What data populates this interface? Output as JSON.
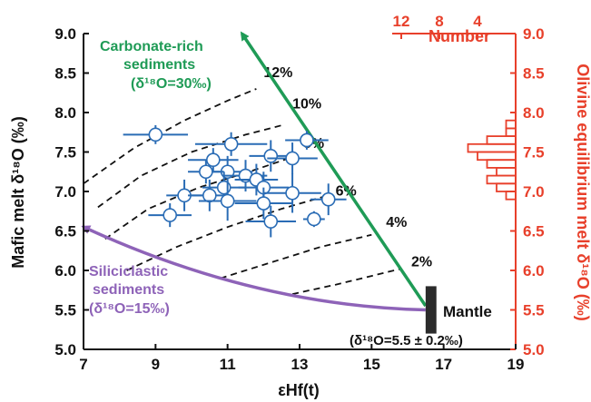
{
  "colors": {
    "axis": "#111111",
    "data_blue": "#2a6cb5",
    "right_axis": "#e8402b",
    "green_arrow": "#1f9b56",
    "purple_arrow": "#8e63b8",
    "mantle_box": "#2b2b2b"
  },
  "chart_data": {
    "type": "scatter",
    "xlabel": "εHf(t)",
    "ylabel_left": "Mafic melt δ¹⁸O (‰)",
    "ylabel_right": "Olivine equilibrium melt δ¹⁸O (‰)",
    "top_axis_label": "Number",
    "xlim": [
      7,
      19
    ],
    "ylim": [
      5.0,
      9.0
    ],
    "x_ticks": [
      "7",
      "9",
      "11",
      "13",
      "15",
      "17",
      "19"
    ],
    "y_ticks": [
      "5.0",
      "5.5",
      "6.0",
      "6.5",
      "7.0",
      "7.5",
      "8.0",
      "8.5",
      "9.0"
    ],
    "right_ticks": [
      "5.0",
      "5.5",
      "6.0",
      "6.5",
      "7.0",
      "7.5",
      "8.0",
      "8.5",
      "9.0"
    ],
    "top_ticks": [
      "12",
      "8",
      "4"
    ],
    "points": [
      {
        "x": 9.0,
        "y": 7.72,
        "xerr": 0.9,
        "yerr": 0.12
      },
      {
        "x": 11.1,
        "y": 7.6,
        "xerr": 1.0,
        "yerr": 0.15
      },
      {
        "x": 13.2,
        "y": 7.65,
        "xerr": 0.6,
        "yerr": 0.12
      },
      {
        "x": 10.6,
        "y": 7.4,
        "xerr": 0.7,
        "yerr": 0.15
      },
      {
        "x": 11.0,
        "y": 7.25,
        "xerr": 0.7,
        "yerr": 0.2
      },
      {
        "x": 11.5,
        "y": 7.2,
        "xerr": 0.6,
        "yerr": 0.2
      },
      {
        "x": 12.2,
        "y": 7.45,
        "xerr": 0.6,
        "yerr": 0.2
      },
      {
        "x": 12.8,
        "y": 7.42,
        "xerr": 0.7,
        "yerr": 0.2
      },
      {
        "x": 10.4,
        "y": 7.25,
        "xerr": 0.5,
        "yerr": 0.15
      },
      {
        "x": 11.8,
        "y": 7.15,
        "xerr": 0.6,
        "yerr": 0.2
      },
      {
        "x": 12.0,
        "y": 7.05,
        "xerr": 0.7,
        "yerr": 0.2
      },
      {
        "x": 10.9,
        "y": 7.05,
        "xerr": 0.6,
        "yerr": 0.2
      },
      {
        "x": 9.8,
        "y": 6.95,
        "xerr": 0.5,
        "yerr": 0.2
      },
      {
        "x": 10.5,
        "y": 6.95,
        "xerr": 0.6,
        "yerr": 0.2
      },
      {
        "x": 11.0,
        "y": 6.88,
        "xerr": 0.8,
        "yerr": 0.25
      },
      {
        "x": 12.0,
        "y": 6.85,
        "xerr": 0.8,
        "yerr": 0.2
      },
      {
        "x": 12.8,
        "y": 6.98,
        "xerr": 0.8,
        "yerr": 0.25
      },
      {
        "x": 13.8,
        "y": 6.9,
        "xerr": 0.5,
        "yerr": 0.2
      },
      {
        "x": 9.4,
        "y": 6.7,
        "xerr": 0.6,
        "yerr": 0.15
      },
      {
        "x": 12.2,
        "y": 6.62,
        "xerr": 0.7,
        "yerr": 0.2
      },
      {
        "x": 13.4,
        "y": 6.65,
        "xerr": 0.3,
        "yerr": 0.1
      }
    ],
    "mixing_curves": [
      {
        "label": "2%",
        "points": [
          [
            12.8,
            5.7
          ],
          [
            14.0,
            5.82
          ],
          [
            15.0,
            5.93
          ],
          [
            15.8,
            6.02
          ]
        ],
        "label_at": [
          16.1,
          6.05
        ]
      },
      {
        "label": "4%",
        "points": [
          [
            10.8,
            5.9
          ],
          [
            12.2,
            6.1
          ],
          [
            13.6,
            6.3
          ],
          [
            15.0,
            6.45
          ]
        ],
        "label_at": [
          15.4,
          6.55
        ]
      },
      {
        "label": "6%",
        "points": [
          [
            8.2,
            6.0
          ],
          [
            9.6,
            6.3
          ],
          [
            11.0,
            6.55
          ],
          [
            12.5,
            6.78
          ],
          [
            13.8,
            6.95
          ]
        ],
        "label_at": [
          14.0,
          6.95
        ]
      },
      {
        "label": "8%",
        "points": [
          [
            7.6,
            6.4
          ],
          [
            8.8,
            6.78
          ],
          [
            10.2,
            7.05
          ],
          [
            11.6,
            7.25
          ],
          [
            12.9,
            7.45
          ]
        ],
        "label_at": [
          13.1,
          7.55
        ]
      },
      {
        "label": "10%",
        "points": [
          [
            7.4,
            6.8
          ],
          [
            8.6,
            7.2
          ],
          [
            10.0,
            7.5
          ],
          [
            11.5,
            7.72
          ],
          [
            12.6,
            7.85
          ]
        ],
        "label_at": [
          12.8,
          8.05
        ]
      },
      {
        "label": "12%",
        "points": [
          [
            7.0,
            7.1
          ],
          [
            8.4,
            7.55
          ],
          [
            9.8,
            7.9
          ],
          [
            11.0,
            8.15
          ],
          [
            11.8,
            8.3
          ]
        ],
        "label_at": [
          12.0,
          8.45
        ]
      }
    ],
    "histogram": {
      "bins": [
        6.9,
        7.0,
        7.1,
        7.2,
        7.3,
        7.4,
        7.5,
        7.6,
        7.7,
        7.8,
        7.9
      ],
      "counts": [
        1,
        2,
        3,
        2,
        3,
        4,
        5,
        3,
        1,
        1
      ]
    },
    "carbonate_arrow": {
      "from": [
        16.5,
        5.55
      ],
      "to": [
        11.4,
        9.0
      ]
    },
    "siliciclastic_arrow": {
      "from": [
        16.5,
        5.5
      ],
      "to": [
        7.0,
        6.55
      ]
    },
    "mantle_box": {
      "x": [
        16.5,
        16.8
      ],
      "y": [
        5.2,
        5.8
      ]
    }
  },
  "labels": {
    "carbonate_line1": "Carbonate-rich",
    "carbonate_line2": "sediments",
    "carbonate_line3": "(δ¹⁸O=30‰)",
    "siliciclastic_line1": "Siliciclastic",
    "siliciclastic_line2": "sediments",
    "siliciclastic_line3": "(δ¹⁸O=15‰)",
    "mantle": "Mantle",
    "mantle_value": "(δ¹⁸O=5.5 ± 0.2‰)"
  }
}
